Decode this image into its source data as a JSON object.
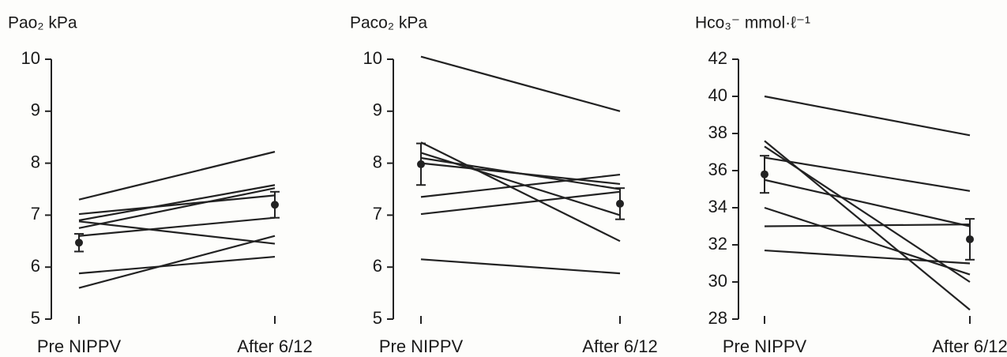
{
  "chart_data": [
    {
      "type": "line",
      "title": "Pao₂ kPa",
      "categories": [
        "Pre NIPPV",
        "After 6/12"
      ],
      "ylim": [
        5,
        10
      ],
      "yticks": [
        5,
        6,
        7,
        8,
        9,
        10
      ],
      "color": "#222222",
      "series": [
        {
          "values": [
            7.3,
            8.22
          ]
        },
        {
          "values": [
            7.02,
            7.38
          ]
        },
        {
          "values": [
            6.9,
            7.58
          ]
        },
        {
          "values": [
            6.88,
            6.45
          ]
        },
        {
          "values": [
            6.6,
            6.95
          ]
        },
        {
          "values": [
            5.88,
            6.2
          ]
        },
        {
          "values": [
            5.6,
            6.6
          ]
        },
        {
          "values": [
            6.75,
            7.52
          ]
        }
      ],
      "mean": {
        "values": [
          6.47,
          7.2
        ],
        "errors": [
          0.17,
          0.25
        ]
      }
    },
    {
      "type": "line",
      "title": "Paco₂ kPa",
      "categories": [
        "Pre NIPPV",
        "After 6/12"
      ],
      "ylim": [
        5,
        10
      ],
      "yticks": [
        5,
        6,
        7,
        8,
        9,
        10
      ],
      "color": "#222222",
      "series": [
        {
          "values": [
            10.05,
            9.0
          ]
        },
        {
          "values": [
            8.4,
            6.5
          ]
        },
        {
          "values": [
            8.2,
            7.0
          ]
        },
        {
          "values": [
            8.1,
            7.5
          ]
        },
        {
          "values": [
            8.0,
            7.6
          ]
        },
        {
          "values": [
            7.35,
            7.78
          ]
        },
        {
          "values": [
            7.02,
            7.45
          ]
        },
        {
          "values": [
            6.15,
            5.88
          ]
        }
      ],
      "mean": {
        "values": [
          7.98,
          7.22
        ],
        "errors": [
          0.4,
          0.3
        ]
      }
    },
    {
      "type": "line",
      "title": "Hco₃⁻ mmol·ℓ⁻¹",
      "categories": [
        "Pre NIPPV",
        "After 6/12"
      ],
      "ylim": [
        28,
        42
      ],
      "yticks": [
        28,
        30,
        32,
        34,
        36,
        38,
        40,
        42
      ],
      "color": "#222222",
      "series": [
        {
          "values": [
            40,
            37.9
          ]
        },
        {
          "values": [
            37.6,
            28.5
          ]
        },
        {
          "values": [
            37.3,
            30.0
          ]
        },
        {
          "values": [
            36.7,
            34.9
          ]
        },
        {
          "values": [
            35.5,
            33.0
          ]
        },
        {
          "values": [
            34.0,
            30.4
          ]
        },
        {
          "values": [
            33.0,
            33.1
          ]
        },
        {
          "values": [
            31.7,
            31.0
          ]
        }
      ],
      "mean": {
        "values": [
          35.8,
          32.3
        ],
        "errors": [
          1.0,
          1.1
        ]
      }
    }
  ]
}
